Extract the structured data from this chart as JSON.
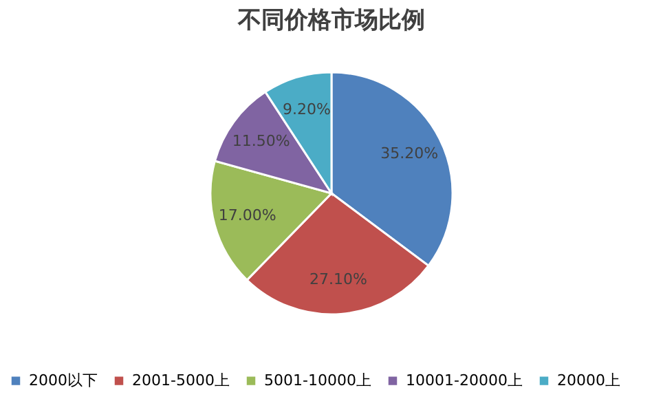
{
  "chart_data": {
    "type": "pie",
    "title": "不同价格市场比例",
    "categories": [
      "2000以下",
      "2001-5000上",
      "5001-10000上",
      "10001-20000上",
      "20000上"
    ],
    "values": [
      35.2,
      27.1,
      17.0,
      11.5,
      9.2
    ],
    "colors": [
      "#4f81bd",
      "#c0504d",
      "#9bbb59",
      "#8064a2",
      "#4bacc6"
    ],
    "value_labels": [
      "35.20%",
      "27.10%",
      "17.00%",
      "11.50%",
      "9.20%"
    ],
    "legend": "bottom"
  }
}
